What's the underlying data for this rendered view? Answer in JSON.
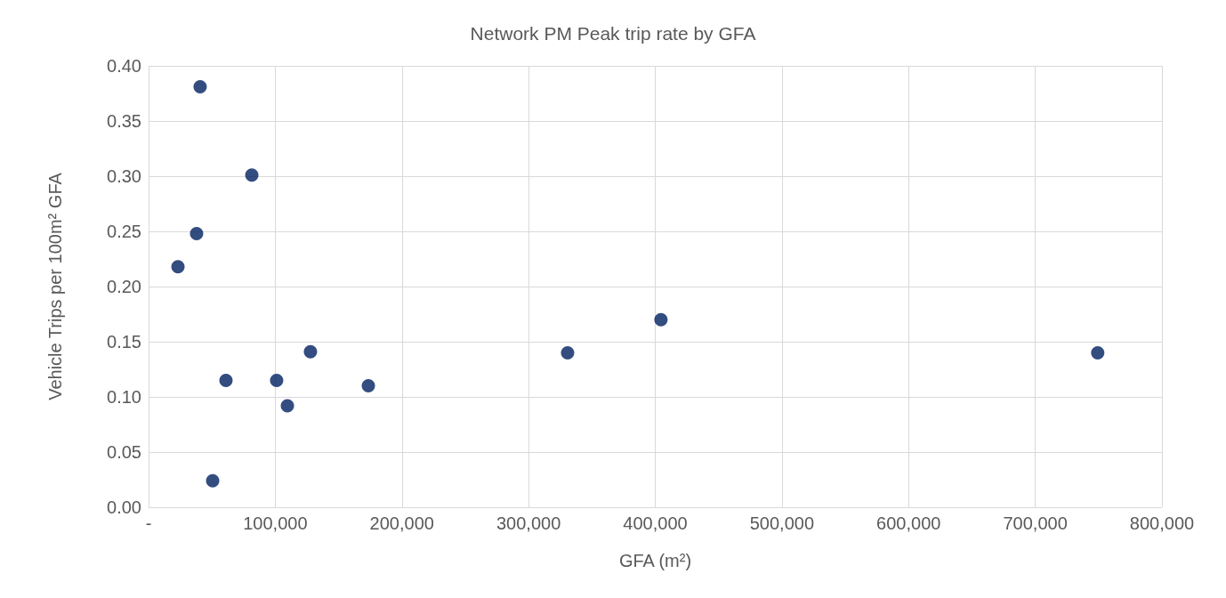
{
  "chart_data": {
    "type": "scatter",
    "title": "Network PM Peak trip rate by GFA",
    "xlabel": "GFA (m²)",
    "ylabel": "Vehicle Trips per 100m² GFA",
    "x": [
      23200,
      40700,
      37900,
      81500,
      61100,
      50600,
      101100,
      109600,
      127800,
      173500,
      330800,
      404500,
      749300
    ],
    "values": [
      0.218,
      0.381,
      0.248,
      0.301,
      0.115,
      0.024,
      0.115,
      0.092,
      0.141,
      0.11,
      0.14,
      0.17,
      0.14
    ],
    "color": "#002060",
    "marker": "circle",
    "xlim": [
      0,
      800000
    ],
    "xticks": [
      {
        "value": 0,
        "label": "-"
      },
      {
        "value": 100000,
        "label": "100,000"
      },
      {
        "value": 200000,
        "label": "200,000"
      },
      {
        "value": 300000,
        "label": "300,000"
      },
      {
        "value": 400000,
        "label": "400,000"
      },
      {
        "value": 500000,
        "label": "500,000"
      },
      {
        "value": 600000,
        "label": "600,000"
      },
      {
        "value": 700000,
        "label": "700,000"
      },
      {
        "value": 800000,
        "label": "800,000"
      }
    ],
    "ylim": [
      0,
      0.4
    ],
    "yticks": [
      {
        "value": 0,
        "label": "0.00"
      },
      {
        "value": 0.05,
        "label": "0.05"
      },
      {
        "value": 0.1,
        "label": "0.10"
      },
      {
        "value": 0.15,
        "label": "0.15"
      },
      {
        "value": 0.2,
        "label": "0.20"
      },
      {
        "value": 0.25,
        "label": "0.25"
      },
      {
        "value": 0.3,
        "label": "0.30"
      },
      {
        "value": 0.35,
        "label": "0.35"
      },
      {
        "value": 0.4,
        "label": "0.40"
      }
    ],
    "grid": true
  }
}
